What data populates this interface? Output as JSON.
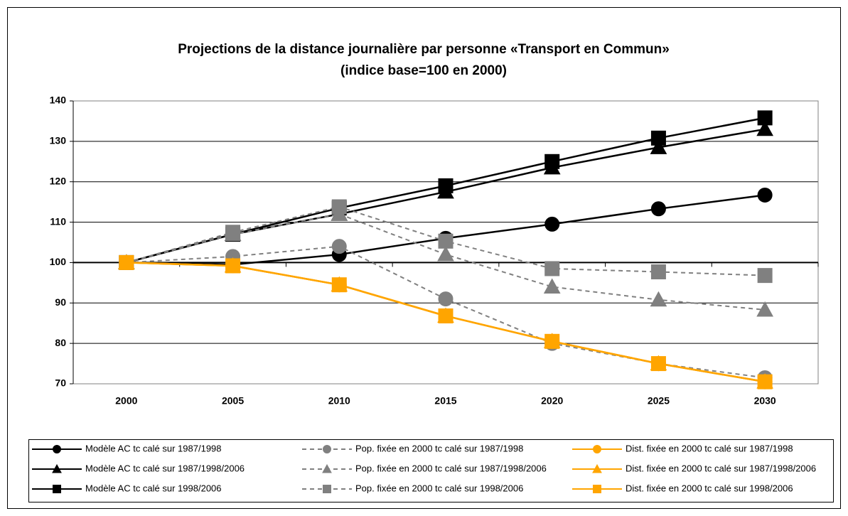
{
  "chart_data": {
    "type": "line",
    "title": "Projections de la distance journalière par personne «Transport en Commun»",
    "subtitle": "(indice base=100 en 2000)",
    "categories": [
      "2000",
      "2005",
      "2010",
      "2015",
      "2020",
      "2025",
      "2030"
    ],
    "ylim": [
      70,
      140
    ],
    "yticks": [
      70,
      80,
      90,
      100,
      110,
      120,
      130,
      140
    ],
    "grid": true,
    "xaxis_crosses": 100,
    "series": [
      {
        "name": "Modèle AC tc calé sur 1987/1998",
        "color": "#000000",
        "marker": "circle",
        "dashed": false,
        "values": [
          100,
          99.5,
          102,
          106,
          109.5,
          113.3,
          116.7
        ]
      },
      {
        "name": "Modèle AC tc calé sur 1987/1998/2006",
        "color": "#000000",
        "marker": "triangle",
        "dashed": false,
        "values": [
          100,
          107,
          112,
          117.5,
          123.5,
          128.5,
          133
        ]
      },
      {
        "name": "Modèle AC tc calé sur 1998/2006",
        "color": "#000000",
        "marker": "square",
        "dashed": false,
        "values": [
          100,
          107,
          113.5,
          119,
          125,
          130.8,
          135.8
        ]
      },
      {
        "name": "Pop. fixée en 2000 tc calé sur 1987/1998",
        "color": "#808080",
        "marker": "circle",
        "dashed": true,
        "values": [
          100,
          101.5,
          104,
          91,
          80,
          75,
          71.5
        ]
      },
      {
        "name": "Pop. fixée en 2000 tc calé sur 1987/1998/2006",
        "color": "#808080",
        "marker": "triangle",
        "dashed": true,
        "values": [
          100,
          107,
          112,
          102,
          94,
          90.8,
          88.3
        ]
      },
      {
        "name": "Pop. fixée en 2000 tc calé sur 1998/2006",
        "color": "#808080",
        "marker": "square",
        "dashed": true,
        "values": [
          100,
          107.5,
          113.8,
          105.3,
          98.5,
          97.7,
          96.8
        ]
      },
      {
        "name": "Dist. fixée en 2000 tc calé sur 1987/1998",
        "color": "#ffa500",
        "marker": "circle",
        "dashed": false,
        "values": [
          100,
          99.2,
          94.5,
          86.8,
          80.5,
          75,
          70.5
        ]
      },
      {
        "name": "Dist. fixée en 2000 tc calé sur 1987/1998/2006",
        "color": "#ffa500",
        "marker": "triangle",
        "dashed": false,
        "values": [
          100,
          99.2,
          94.5,
          86.8,
          80.5,
          75,
          70.5
        ]
      },
      {
        "name": "Dist. fixée en 2000 tc calé sur 1998/2006",
        "color": "#ffa500",
        "marker": "square",
        "dashed": false,
        "values": [
          100,
          99.2,
          94.5,
          86.8,
          80.5,
          75,
          70.5
        ]
      }
    ]
  }
}
